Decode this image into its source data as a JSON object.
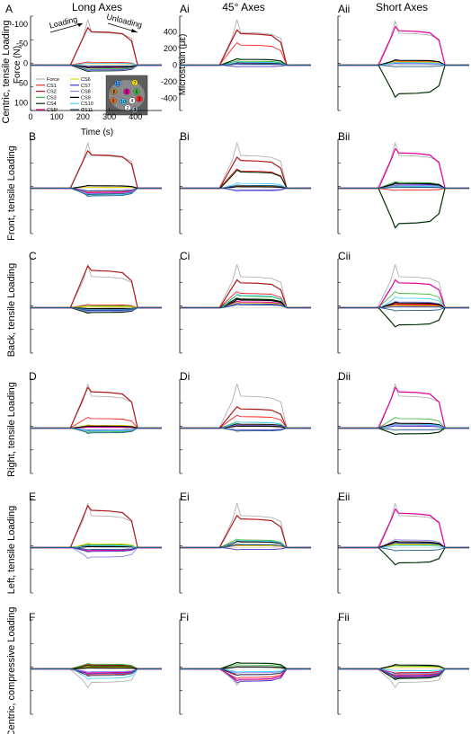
{
  "colors": {
    "Force": "#b0b0b0",
    "CS1": "#ff2020",
    "CS2": "#b01818",
    "CS3": "#3cb93c",
    "CS4": "#003000",
    "CS5": "#e000a0",
    "CS6": "#e6d800",
    "CS7": "#4a38c8",
    "CS8": "#8888f0",
    "CS9": "#000000",
    "CS10": "#4ad0ff",
    "CS11": "#1e5a8c",
    "axis": "#000000"
  },
  "columns": [
    {
      "label": "Long Axes"
    },
    {
      "label": "45° Axes"
    },
    {
      "label": "Short Axes"
    }
  ],
  "rows": [
    {
      "label": "Centric, tensile Loading",
      "letter": "A"
    },
    {
      "label": "Front, tensile Loading",
      "letter": "B"
    },
    {
      "label": "Back, tensile Loading",
      "letter": "C"
    },
    {
      "label": "Right, tensile Loading",
      "letter": "D"
    },
    {
      "label": "Left, tensile Loading",
      "letter": "E"
    },
    {
      "label": "Centric, compressive Loading",
      "letter": "F"
    }
  ],
  "panel_letters": [
    [
      "A",
      "Ai",
      "Aii"
    ],
    [
      "B",
      "Bi",
      "Bii"
    ],
    [
      "C",
      "Ci",
      "Cii"
    ],
    [
      "D",
      "Di",
      "Dii"
    ],
    [
      "E",
      "Ei",
      "Eii"
    ],
    [
      "F",
      "Fi",
      "Fii"
    ]
  ],
  "annotations": {
    "loading": "Loading",
    "unloading": "Unloading"
  },
  "photo_labels": [
    "11",
    "7",
    "8",
    "5",
    "6",
    "9",
    "10",
    "4",
    "3",
    "2",
    "1"
  ],
  "chart_data": {
    "type": "line",
    "x": [
      0,
      150,
      200,
      215,
      230,
      250,
      280,
      350,
      380,
      400,
      420,
      500
    ],
    "xlabel": "Time (s)",
    "xlim": [
      0,
      500
    ],
    "xticks": [
      0,
      100,
      200,
      300,
      400
    ],
    "force_axis": {
      "ylabel": "Force (N)",
      "ylim": [
        120,
        -120
      ],
      "yticks": [
        -100,
        -50,
        0,
        50,
        100
      ],
      "tick_labels": [
        "-100",
        "-50",
        "0",
        "50",
        "100"
      ]
    },
    "strain_axis": {
      "ylabel": "Microstrain (με)",
      "ylim": [
        -500,
        500
      ],
      "yticks": [
        -400,
        -200,
        0,
        200,
        400
      ],
      "tick_labels": [
        "-400",
        "-200",
        "0",
        "200",
        "400"
      ]
    },
    "legend": [
      "Force",
      "CS1",
      "CS2",
      "CS3",
      "CS4",
      "CS5",
      "CS6",
      "CS7",
      "CS8",
      "CS9",
      "CS10",
      "CS11"
    ],
    "panels": [
      {
        "id": "A",
        "levels": {
          "Force": 390,
          "CS1": 30,
          "CS2": 350,
          "CS3": -40,
          "CS4": -60,
          "CS5": -15,
          "CS6": 15,
          "CS7": -50,
          "CS8": -55,
          "CS9": -25,
          "CS10": 20,
          "CS11": -10
        }
      },
      {
        "id": "Ai",
        "levels": {
          "Force": 390,
          "CS1": 210,
          "CS2": 330,
          "CS3": 40,
          "CS4": 60,
          "CS5": 20,
          "CS6": 25,
          "CS7": -15,
          "CS8": 20,
          "CS9": 25,
          "CS10": 30,
          "CS11": 10
        }
      },
      {
        "id": "Aii",
        "levels": {
          "Force": 380,
          "CS1": 40,
          "CS2": 30,
          "CS3": 30,
          "CS4": -300,
          "CS5": 360,
          "CS6": 35,
          "CS7": 15,
          "CS8": 20,
          "CS9": 50,
          "CS10": 25,
          "CS11": -15
        }
      },
      {
        "id": "B",
        "levels": {
          "Force": 390,
          "CS1": -40,
          "CS2": 350,
          "CS3": -30,
          "CS4": -60,
          "CS5": -45,
          "CS6": 10,
          "CS7": -25,
          "CS8": -55,
          "CS9": 25,
          "CS10": -70,
          "CS11": -80
        }
      },
      {
        "id": "Bi",
        "levels": {
          "Force": 390,
          "CS1": 180,
          "CS2": 290,
          "CS3": 20,
          "CS4": 170,
          "CS5": 25,
          "CS6": 20,
          "CS7": -20,
          "CS8": -30,
          "CS9": 15,
          "CS10": 50,
          "CS11": 30
        }
      },
      {
        "id": "Bii",
        "levels": {
          "Force": 390,
          "CS1": -20,
          "CS2": 20,
          "CS3": 60,
          "CS4": -370,
          "CS5": 370,
          "CS6": 30,
          "CS7": 40,
          "CS8": 30,
          "CS9": 50,
          "CS10": 20,
          "CS11": 10
        }
      },
      {
        "id": "C",
        "levels": {
          "Force": 370,
          "CS1": 30,
          "CS2": 390,
          "CS3": 20,
          "CS4": -50,
          "CS5": -20,
          "CS6": 10,
          "CS7": -30,
          "CS8": -40,
          "CS9": -10,
          "CS10": -20,
          "CS11": -25
        }
      },
      {
        "id": "Ci",
        "levels": {
          "Force": 370,
          "CS1": 150,
          "CS2": 260,
          "CS3": 120,
          "CS4": 90,
          "CS5": 60,
          "CS6": 50,
          "CS7": 40,
          "CS8": 30,
          "CS9": 80,
          "CS10": 130,
          "CS11": 30
        }
      },
      {
        "id": "Cii",
        "levels": {
          "Force": 370,
          "CS1": 40,
          "CS2": 30,
          "CS3": 150,
          "CS4": -180,
          "CS5": 260,
          "CS6": 20,
          "CS7": 10,
          "CS8": 60,
          "CS9": 50,
          "CS10": 100,
          "CS11": -30
        }
      },
      {
        "id": "D",
        "levels": {
          "Force": 380,
          "CS1": 100,
          "CS2": 380,
          "CS3": -40,
          "CS4": -20,
          "CS5": 10,
          "CS6": 30,
          "CS7": -30,
          "CS8": -20,
          "CS9": 20,
          "CS10": -30,
          "CS11": -50
        }
      },
      {
        "id": "Di",
        "levels": {
          "Force": 380,
          "CS1": 120,
          "CS2": 200,
          "CS3": 60,
          "CS4": 40,
          "CS5": 30,
          "CS6": 20,
          "CS7": -20,
          "CS8": 30,
          "CS9": 20,
          "CS10": 60,
          "CS11": -30
        }
      },
      {
        "id": "Dii",
        "levels": {
          "Force": 380,
          "CS1": 50,
          "CS2": 40,
          "CS3": 100,
          "CS4": -60,
          "CS5": 380,
          "CS6": 30,
          "CS7": 20,
          "CS8": 30,
          "CS9": 50,
          "CS10": 40,
          "CS11": -20
        }
      },
      {
        "id": "E",
        "levels": {
          "Force": 380,
          "CS1": 20,
          "CS2": 390,
          "CS3": 30,
          "CS4": 20,
          "CS5": -30,
          "CS6": 40,
          "CS7": -40,
          "CS8": -100,
          "CS9": 10,
          "CS10": 20,
          "CS11": -20
        }
      },
      {
        "id": "Ei",
        "levels": {
          "Force": 380,
          "CS1": 60,
          "CS2": 300,
          "CS3": 80,
          "CS4": 30,
          "CS5": 20,
          "CS6": 20,
          "CS7": -20,
          "CS8": 30,
          "CS9": 60,
          "CS10": 70,
          "CS11": 30
        }
      },
      {
        "id": "Eii",
        "levels": {
          "Force": 380,
          "CS1": 60,
          "CS2": 40,
          "CS3": 40,
          "CS4": -160,
          "CS5": 360,
          "CS6": 30,
          "CS7": 50,
          "CS8": 80,
          "CS9": 60,
          "CS10": 20,
          "CS11": -30
        }
      },
      {
        "id": "F",
        "levels": {
          "Force": -160,
          "CS1": -60,
          "CS2": 40,
          "CS3": 50,
          "CS4": 30,
          "CS5": -40,
          "CS6": 20,
          "CS7": -50,
          "CS8": -30,
          "CS9": 10,
          "CS10": -100,
          "CS11": -70
        }
      },
      {
        "id": "Fi",
        "levels": {
          "Force": -140,
          "CS1": -90,
          "CS2": -60,
          "CS3": 40,
          "CS4": 60,
          "CS5": -110,
          "CS6": 20,
          "CS7": -130,
          "CS8": -40,
          "CS9": 20,
          "CS10": -30,
          "CS11": -60
        }
      },
      {
        "id": "Fii",
        "levels": {
          "Force": -160,
          "CS1": -60,
          "CS2": -40,
          "CS3": 30,
          "CS4": -100,
          "CS5": -80,
          "CS6": 20,
          "CS7": -70,
          "CS8": -50,
          "CS9": 40,
          "CS10": -20,
          "CS11": -90
        }
      }
    ]
  }
}
